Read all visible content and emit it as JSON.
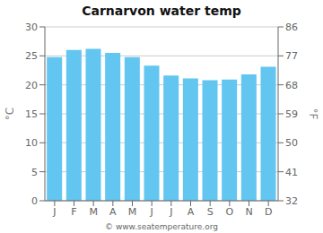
{
  "chart_data": {
    "type": "bar",
    "title": "Carnarvon water temp",
    "categories": [
      "J",
      "F",
      "M",
      "A",
      "M",
      "J",
      "J",
      "A",
      "S",
      "O",
      "N",
      "D"
    ],
    "values": [
      24.8,
      26.0,
      26.2,
      25.5,
      24.8,
      23.3,
      21.6,
      21.1,
      20.8,
      20.9,
      21.8,
      23.1
    ],
    "ylim": [
      0,
      30
    ],
    "yticks": [
      0,
      5,
      10,
      15,
      20,
      25,
      30
    ],
    "y2lim": [
      32,
      86
    ],
    "y2ticks": [
      32,
      41,
      50,
      59,
      68,
      77,
      86
    ],
    "ylabel": "°C",
    "y2label": "°F",
    "color": "#62c6f0",
    "grid": true,
    "annotations": [
      "© www.seatemperature.org"
    ]
  }
}
